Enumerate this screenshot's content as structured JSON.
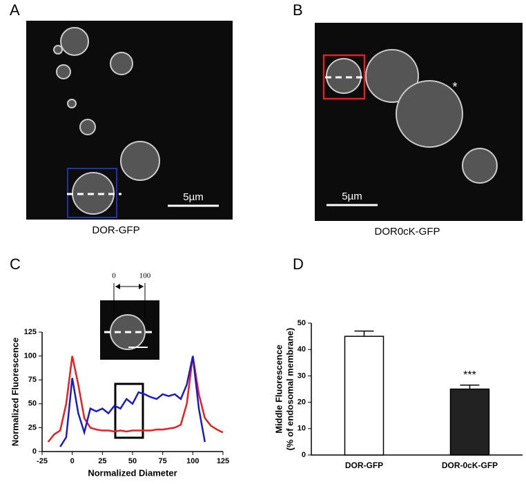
{
  "panels": {
    "a": "A",
    "b": "B",
    "c": "C",
    "d": "D"
  },
  "images": {
    "a_caption": "DOR-GFP",
    "b_caption": "DOR0cK-GFP",
    "a_scale": "5µm",
    "b_scale": "5µm",
    "b_marker": "*"
  },
  "inset_labels": [
    "0",
    "100"
  ],
  "chart_data": [
    {
      "type": "line",
      "xlabel": "Normalized Diameter",
      "ylabel": "Normalized Fluorescence",
      "x": [
        -20,
        -15,
        -10,
        -5,
        0,
        5,
        10,
        15,
        20,
        25,
        30,
        35,
        40,
        45,
        50,
        55,
        60,
        65,
        70,
        75,
        80,
        85,
        90,
        95,
        100,
        105,
        110,
        115,
        120,
        125
      ],
      "series": [
        {
          "name": "DOR0cK-GFP",
          "color": "#ee1c1c",
          "values": [
            10,
            18,
            22,
            50,
            100,
            70,
            35,
            25,
            23,
            22,
            22,
            21,
            22,
            21,
            22,
            22,
            22,
            22,
            23,
            23,
            24,
            25,
            28,
            50,
            100,
            60,
            35,
            27,
            23,
            20
          ]
        },
        {
          "name": "DOR-GFP",
          "color": "#1a1acc",
          "values": [
            null,
            null,
            5,
            15,
            77,
            40,
            20,
            45,
            42,
            45,
            40,
            48,
            45,
            55,
            50,
            62,
            60,
            57,
            55,
            60,
            58,
            60,
            55,
            70,
            100,
            45,
            10,
            null,
            null,
            null
          ]
        }
      ],
      "xlim": [
        -25,
        125
      ],
      "xticks": [
        -25,
        0,
        25,
        50,
        75,
        100,
        125
      ],
      "ylim": [
        0,
        125
      ],
      "yticks": [
        0,
        25,
        50,
        75,
        100,
        125
      ]
    },
    {
      "type": "bar",
      "ylabel": [
        "Middle Fluorescence",
        "(% of endosomal membrane)"
      ],
      "categories": [
        "DOR-GFP",
        "DOR-0cK-GFP"
      ],
      "values": [
        45,
        25
      ],
      "errors": [
        2,
        1.5
      ],
      "colors": [
        "#ffffff",
        "#222222"
      ],
      "annotation": "***",
      "ylim": [
        0,
        50
      ],
      "yticks": [
        0,
        10,
        20,
        30,
        40,
        50
      ]
    }
  ]
}
